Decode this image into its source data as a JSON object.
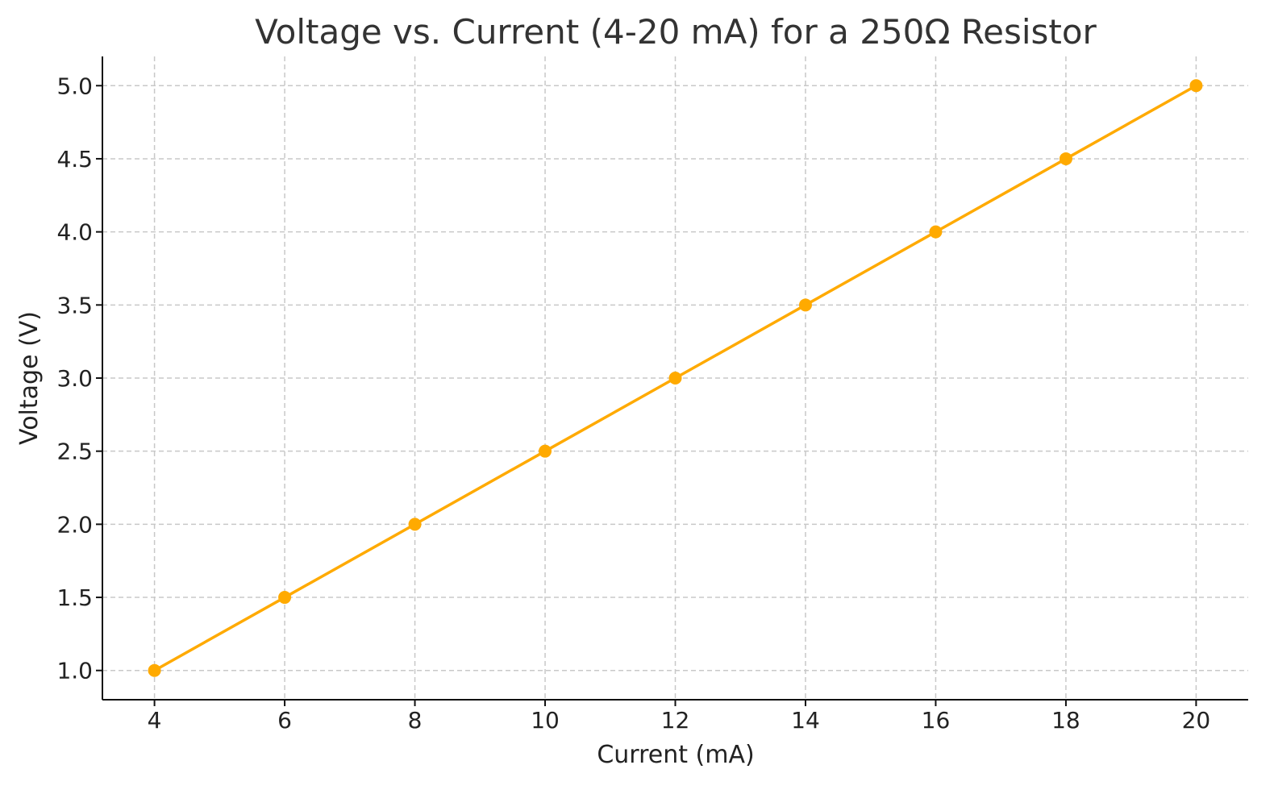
{
  "chart_data": {
    "type": "line",
    "title": "Voltage vs. Current (4-20 mA) for a 250Ω Resistor",
    "xlabel": "Current (mA)",
    "ylabel": "Voltage (V)",
    "x": [
      4,
      6,
      8,
      10,
      12,
      14,
      16,
      18,
      20
    ],
    "series": [
      {
        "values": [
          1.0,
          1.5,
          2.0,
          2.5,
          3.0,
          3.5,
          4.0,
          4.5,
          5.0
        ],
        "color": "#FFAA00"
      }
    ],
    "xticks": [
      "4",
      "6",
      "8",
      "10",
      "12",
      "14",
      "16",
      "18",
      "20"
    ],
    "yticks": [
      "1.0",
      "1.5",
      "2.0",
      "2.5",
      "3.0",
      "3.5",
      "4.0",
      "4.5",
      "5.0"
    ],
    "xlim": [
      3.2,
      20.8
    ],
    "ylim": [
      0.8,
      5.2
    ],
    "grid": true,
    "legend": "none"
  }
}
